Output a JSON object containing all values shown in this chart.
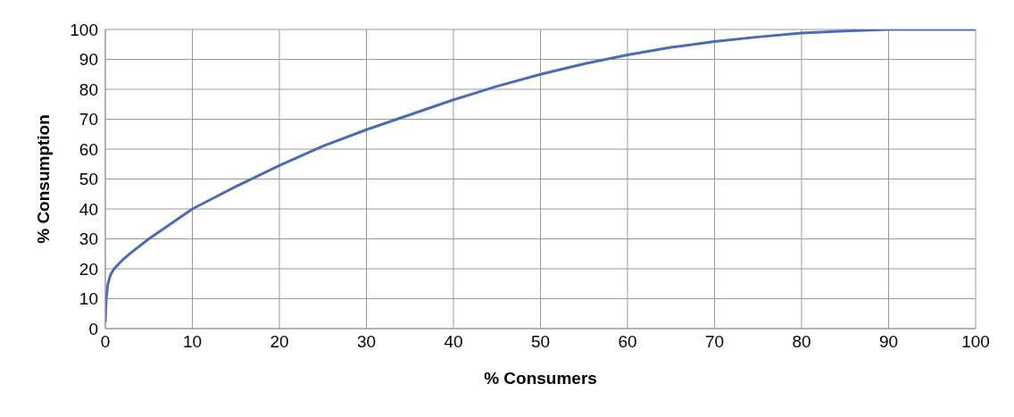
{
  "chart_data": {
    "type": "line",
    "xlabel": "% Consumers",
    "ylabel": "% Consumption",
    "x": [
      0,
      0.1,
      0.3,
      0.6,
      1,
      2,
      3,
      5,
      7.5,
      10,
      15,
      20,
      25,
      30,
      35,
      40,
      45,
      50,
      55,
      60,
      65,
      70,
      75,
      80,
      85,
      90,
      95,
      100
    ],
    "series": [
      {
        "color": "#4a6bb5",
        "values": [
          2,
          10,
          15,
          18,
          20,
          23,
          25.5,
          30,
          35,
          40,
          47.5,
          54.5,
          61,
          66.5,
          71.5,
          76.5,
          81,
          85,
          88.5,
          91.5,
          94,
          96,
          97.5,
          98.8,
          99.5,
          100,
          100,
          100
        ]
      }
    ],
    "xlim": [
      0,
      100
    ],
    "xticks": [
      0,
      10,
      20,
      30,
      40,
      50,
      60,
      70,
      80,
      90,
      100
    ],
    "ylim": [
      0,
      100
    ],
    "yticks": [
      0,
      10,
      20,
      30,
      40,
      50,
      60,
      70,
      80,
      90,
      100
    ],
    "grid": true,
    "marker": "none",
    "line_style": "solid"
  }
}
